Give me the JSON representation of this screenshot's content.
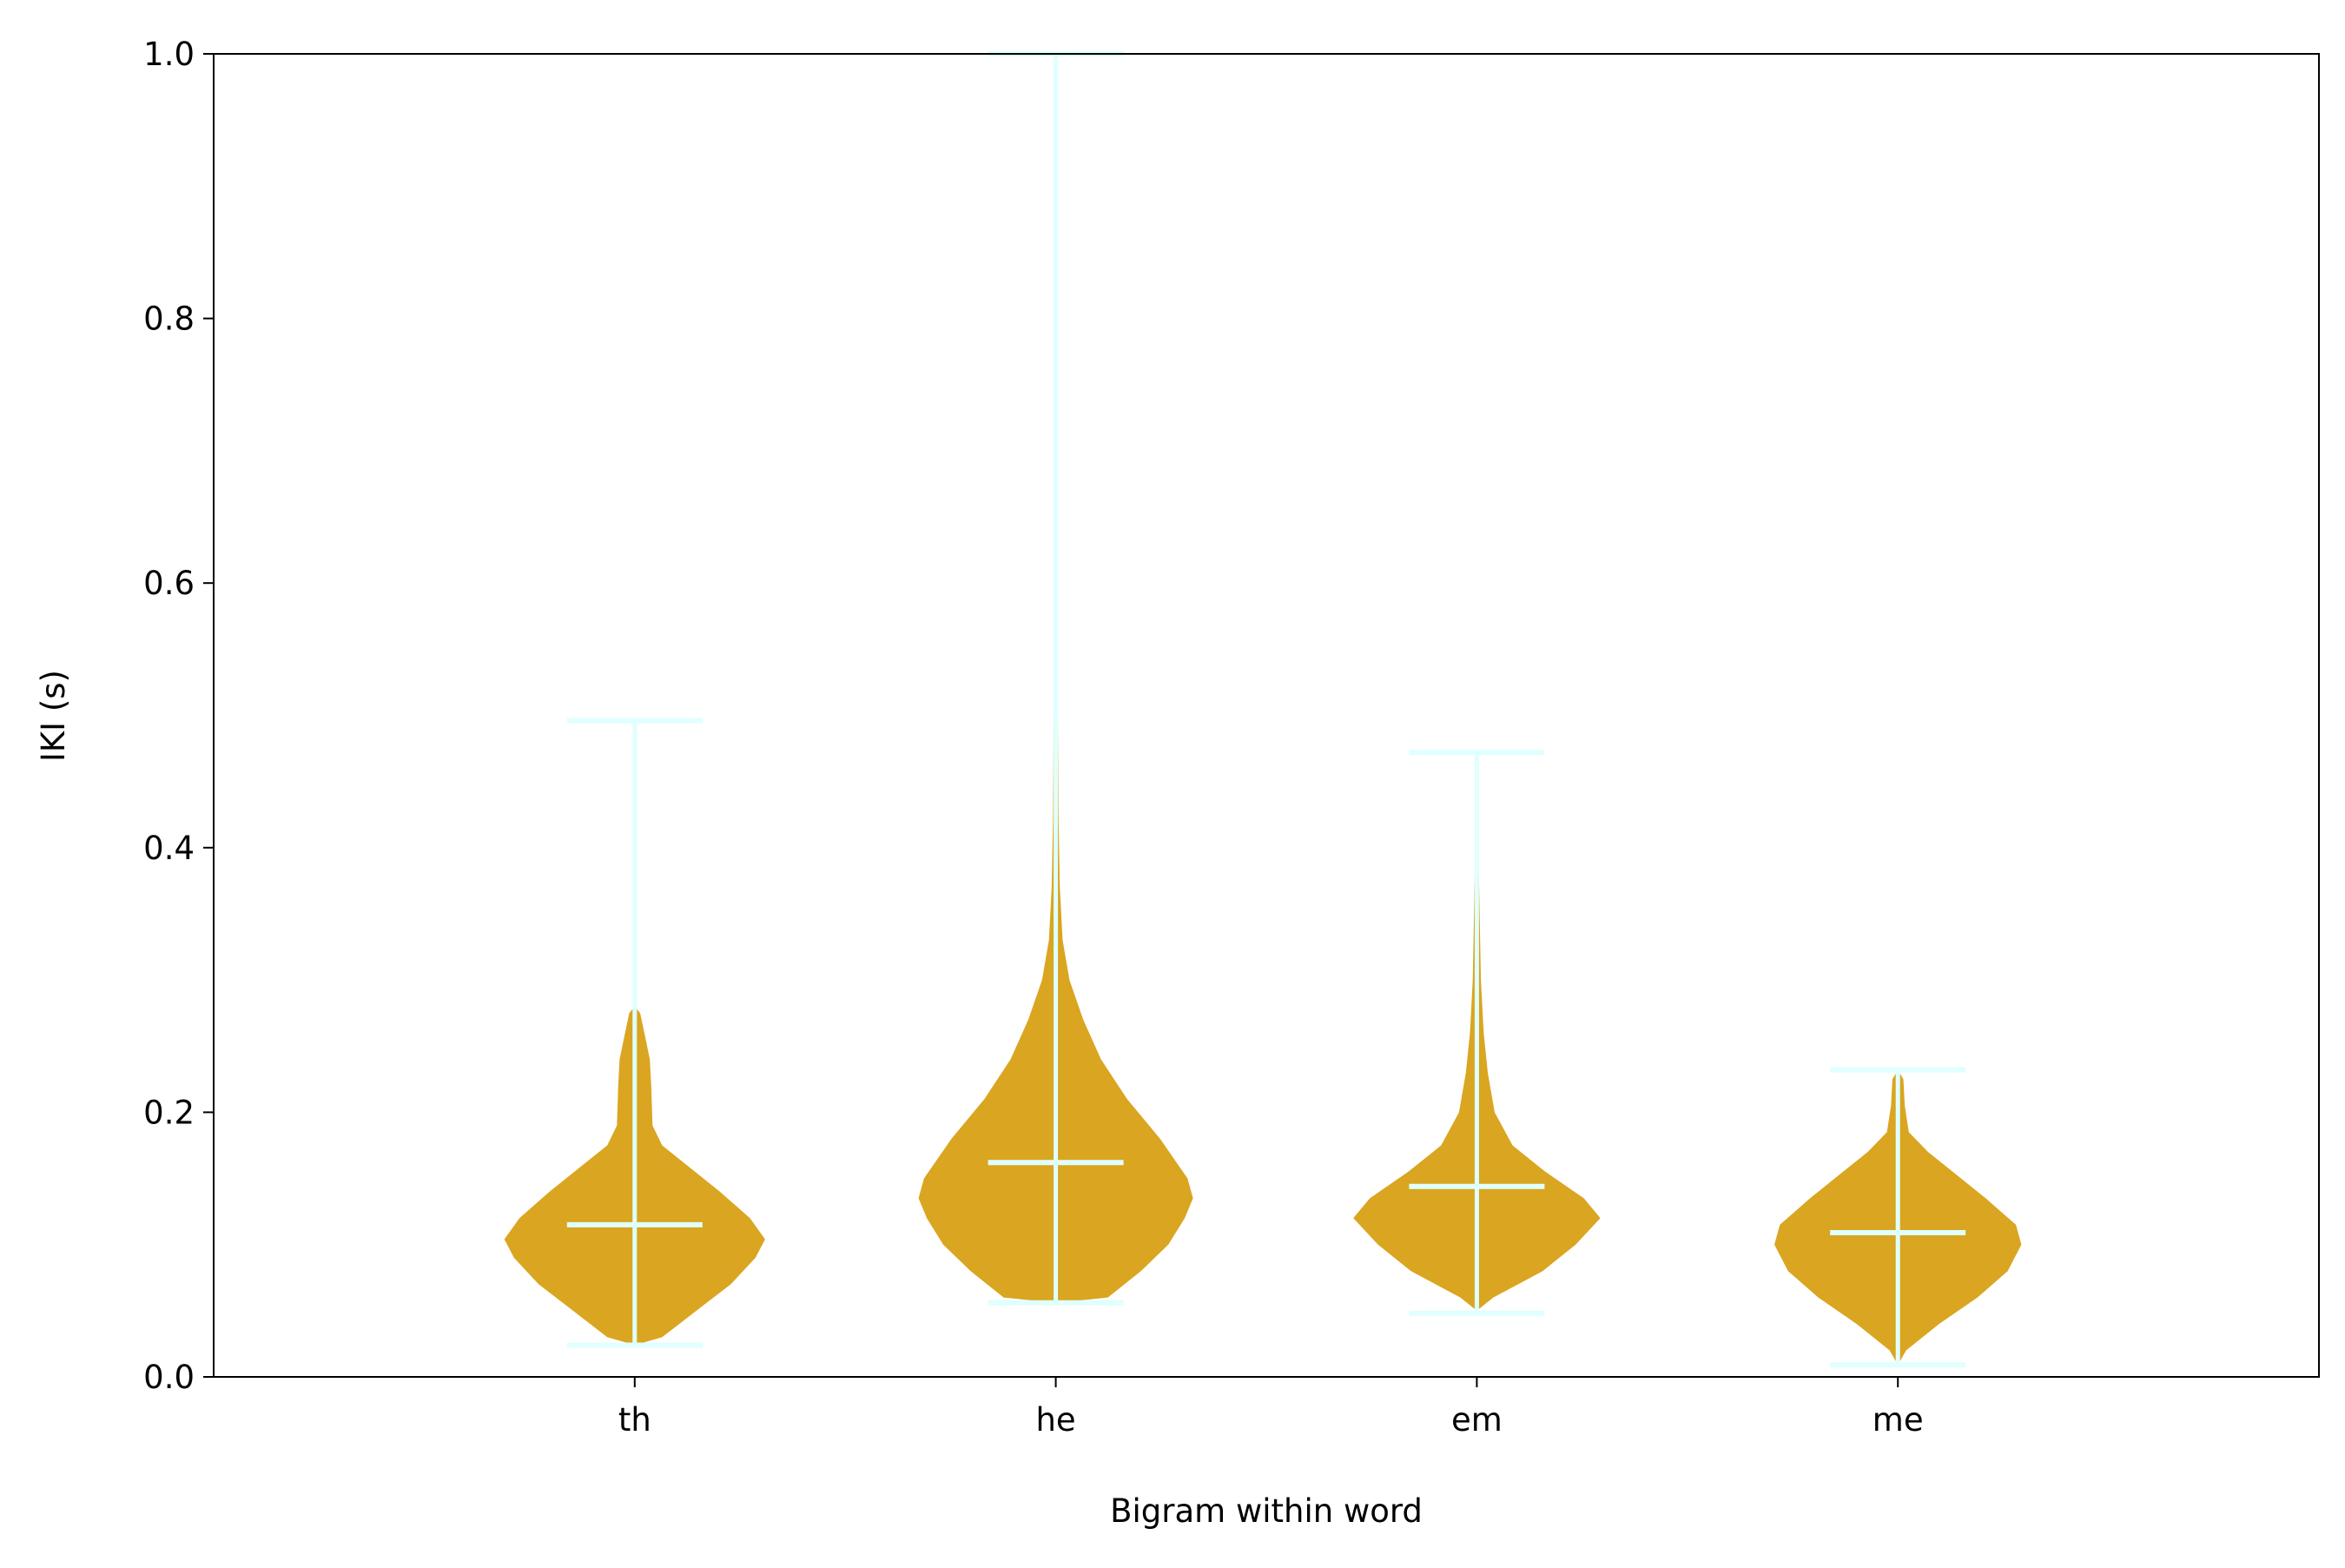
{
  "chart_data": {
    "type": "violin",
    "xlabel": "Bigram within word",
    "ylabel": "IKI (s)",
    "ylim": [
      0.0,
      1.0
    ],
    "yticks": [
      "0.0",
      "0.2",
      "0.4",
      "0.6",
      "0.8",
      "1.0"
    ],
    "grid": false,
    "categories": [
      "th",
      "he",
      "em",
      "me"
    ],
    "violins": [
      {
        "category": "th",
        "min": 0.024,
        "max": 0.496,
        "median": 0.115,
        "profile": [
          [
            0.024,
            0.0
          ],
          [
            0.03,
            0.2
          ],
          [
            0.05,
            0.45
          ],
          [
            0.07,
            0.7
          ],
          [
            0.09,
            0.88
          ],
          [
            0.104,
            0.95
          ],
          [
            0.12,
            0.84
          ],
          [
            0.14,
            0.62
          ],
          [
            0.16,
            0.38
          ],
          [
            0.175,
            0.2
          ],
          [
            0.19,
            0.13
          ],
          [
            0.22,
            0.12
          ],
          [
            0.24,
            0.11
          ],
          [
            0.26,
            0.07
          ],
          [
            0.275,
            0.04
          ],
          [
            0.28,
            0.0
          ]
        ]
      },
      {
        "category": "he",
        "min": 0.056,
        "max": 1.0,
        "median": 0.162,
        "profile": [
          [
            0.056,
            0.0
          ],
          [
            0.06,
            0.38
          ],
          [
            0.08,
            0.62
          ],
          [
            0.1,
            0.82
          ],
          [
            0.12,
            0.94
          ],
          [
            0.135,
            1.0
          ],
          [
            0.15,
            0.96
          ],
          [
            0.18,
            0.76
          ],
          [
            0.21,
            0.52
          ],
          [
            0.24,
            0.33
          ],
          [
            0.27,
            0.2
          ],
          [
            0.3,
            0.1
          ],
          [
            0.33,
            0.05
          ],
          [
            0.37,
            0.03
          ],
          [
            0.42,
            0.02
          ],
          [
            0.5,
            0.015
          ],
          [
            0.54,
            0.0
          ]
        ]
      },
      {
        "category": "em",
        "min": 0.048,
        "max": 0.472,
        "median": 0.144,
        "profile": [
          [
            0.05,
            0.0
          ],
          [
            0.06,
            0.12
          ],
          [
            0.08,
            0.48
          ],
          [
            0.1,
            0.72
          ],
          [
            0.12,
            0.9
          ],
          [
            0.135,
            0.78
          ],
          [
            0.155,
            0.5
          ],
          [
            0.175,
            0.26
          ],
          [
            0.2,
            0.13
          ],
          [
            0.23,
            0.08
          ],
          [
            0.26,
            0.05
          ],
          [
            0.3,
            0.03
          ],
          [
            0.35,
            0.02
          ],
          [
            0.4,
            0.012
          ],
          [
            0.42,
            0.0
          ]
        ]
      },
      {
        "category": "me",
        "min": 0.009,
        "max": 0.232,
        "median": 0.109,
        "profile": [
          [
            0.009,
            0.0
          ],
          [
            0.02,
            0.06
          ],
          [
            0.04,
            0.3
          ],
          [
            0.06,
            0.58
          ],
          [
            0.08,
            0.8
          ],
          [
            0.1,
            0.9
          ],
          [
            0.115,
            0.86
          ],
          [
            0.135,
            0.64
          ],
          [
            0.155,
            0.4
          ],
          [
            0.17,
            0.22
          ],
          [
            0.185,
            0.08
          ],
          [
            0.205,
            0.05
          ],
          [
            0.225,
            0.04
          ],
          [
            0.232,
            0.0
          ]
        ]
      }
    ]
  },
  "colors": {
    "violin_fill": "#DAA520",
    "whisker_line": "#E0FFFF",
    "axis": "#000000"
  }
}
